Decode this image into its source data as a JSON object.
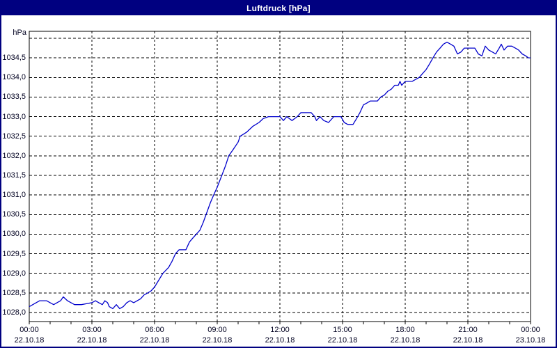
{
  "window": {
    "title": "Luftdruck [hPa]",
    "title_bar_color": "#000080",
    "border_color": "#000080",
    "background_color": "#ffffff",
    "text_color": "#000020"
  },
  "chart_data": {
    "type": "line",
    "title": "Luftdruck [hPa]",
    "ylabel": "hPa",
    "unit_label": "hPa",
    "grid": "dotted black, horizontal every 0.5 hPa, vertical every 3 hours",
    "legend_position": "none",
    "series_color": "#0000cc",
    "frame_color": "#000000",
    "y_axis": {
      "min": 1028.0,
      "max": 1035.0,
      "step": 0.5,
      "tick_labels": [
        "1034,5",
        "1034,0",
        "1033,5",
        "1033,0",
        "1032,5",
        "1032,0",
        "1031,5",
        "1031,0",
        "1030,5",
        "1030,0",
        "1029,5",
        "1029,0",
        "1028,5",
        "1028,0"
      ],
      "top_gridline_unlabeled": 1035.0
    },
    "x_axis": {
      "hours_span": 24,
      "major_tick_hours": 3,
      "minor_tick_hours": 1,
      "ticks": [
        {
          "time": "00:00",
          "date": "22.10.18"
        },
        {
          "time": "03:00",
          "date": "22.10.18"
        },
        {
          "time": "06:00",
          "date": "22.10.18"
        },
        {
          "time": "09:00",
          "date": "22.10.18"
        },
        {
          "time": "12:00",
          "date": "22.10.18"
        },
        {
          "time": "15:00",
          "date": "22.10.18"
        },
        {
          "time": "18:00",
          "date": "22.10.18"
        },
        {
          "time": "21:00",
          "date": "22.10.18"
        },
        {
          "time": "00:00",
          "date": "23.10.18"
        }
      ]
    },
    "series": [
      {
        "name": "Luftdruck",
        "points": [
          [
            0.0,
            1028.15
          ],
          [
            0.17,
            1028.2
          ],
          [
            0.33,
            1028.25
          ],
          [
            0.5,
            1028.3
          ],
          [
            0.83,
            1028.3
          ],
          [
            1.0,
            1028.25
          ],
          [
            1.17,
            1028.2
          ],
          [
            1.33,
            1028.25
          ],
          [
            1.5,
            1028.3
          ],
          [
            1.63,
            1028.4
          ],
          [
            1.83,
            1028.3
          ],
          [
            2.0,
            1028.25
          ],
          [
            2.17,
            1028.2
          ],
          [
            2.5,
            1028.2
          ],
          [
            3.0,
            1028.25
          ],
          [
            3.17,
            1028.3
          ],
          [
            3.33,
            1028.25
          ],
          [
            3.5,
            1028.2
          ],
          [
            3.62,
            1028.3
          ],
          [
            3.75,
            1028.25
          ],
          [
            3.83,
            1028.15
          ],
          [
            4.0,
            1028.1
          ],
          [
            4.17,
            1028.2
          ],
          [
            4.33,
            1028.1
          ],
          [
            4.5,
            1028.15
          ],
          [
            4.67,
            1028.25
          ],
          [
            4.83,
            1028.3
          ],
          [
            5.0,
            1028.25
          ],
          [
            5.17,
            1028.3
          ],
          [
            5.33,
            1028.35
          ],
          [
            5.5,
            1028.45
          ],
          [
            5.67,
            1028.5
          ],
          [
            5.83,
            1028.55
          ],
          [
            6.0,
            1028.65
          ],
          [
            6.17,
            1028.8
          ],
          [
            6.4,
            1029.0
          ],
          [
            6.67,
            1029.15
          ],
          [
            6.83,
            1029.3
          ],
          [
            7.0,
            1029.5
          ],
          [
            7.17,
            1029.6
          ],
          [
            7.5,
            1029.6
          ],
          [
            7.67,
            1029.8
          ],
          [
            7.83,
            1029.9
          ],
          [
            8.0,
            1030.0
          ],
          [
            8.17,
            1030.1
          ],
          [
            8.33,
            1030.3
          ],
          [
            8.5,
            1030.55
          ],
          [
            8.67,
            1030.8
          ],
          [
            8.83,
            1031.0
          ],
          [
            9.0,
            1031.2
          ],
          [
            9.22,
            1031.5
          ],
          [
            9.4,
            1031.75
          ],
          [
            9.55,
            1032.0
          ],
          [
            9.75,
            1032.15
          ],
          [
            10.0,
            1032.35
          ],
          [
            10.1,
            1032.5
          ],
          [
            10.4,
            1032.6
          ],
          [
            10.7,
            1032.75
          ],
          [
            11.0,
            1032.85
          ],
          [
            11.2,
            1032.95
          ],
          [
            11.45,
            1033.0
          ],
          [
            12.0,
            1033.0
          ],
          [
            12.17,
            1032.9
          ],
          [
            12.33,
            1033.0
          ],
          [
            12.58,
            1032.9
          ],
          [
            12.83,
            1033.0
          ],
          [
            13.0,
            1033.1
          ],
          [
            13.5,
            1033.1
          ],
          [
            13.67,
            1033.0
          ],
          [
            13.75,
            1032.9
          ],
          [
            13.92,
            1033.0
          ],
          [
            14.1,
            1032.9
          ],
          [
            14.33,
            1032.85
          ],
          [
            14.58,
            1033.0
          ],
          [
            14.92,
            1033.0
          ],
          [
            15.08,
            1032.85
          ],
          [
            15.25,
            1032.8
          ],
          [
            15.5,
            1032.8
          ],
          [
            15.67,
            1032.95
          ],
          [
            15.83,
            1033.1
          ],
          [
            16.0,
            1033.3
          ],
          [
            16.17,
            1033.35
          ],
          [
            16.33,
            1033.4
          ],
          [
            16.67,
            1033.4
          ],
          [
            16.83,
            1033.5
          ],
          [
            17.0,
            1033.55
          ],
          [
            17.17,
            1033.65
          ],
          [
            17.33,
            1033.7
          ],
          [
            17.5,
            1033.8
          ],
          [
            17.67,
            1033.8
          ],
          [
            17.75,
            1033.9
          ],
          [
            17.83,
            1033.8
          ],
          [
            18.0,
            1033.9
          ],
          [
            18.33,
            1033.9
          ],
          [
            18.5,
            1033.95
          ],
          [
            18.67,
            1034.0
          ],
          [
            18.83,
            1034.1
          ],
          [
            19.0,
            1034.2
          ],
          [
            19.17,
            1034.35
          ],
          [
            19.33,
            1034.5
          ],
          [
            19.5,
            1034.65
          ],
          [
            19.67,
            1034.75
          ],
          [
            19.83,
            1034.85
          ],
          [
            20.0,
            1034.9
          ],
          [
            20.17,
            1034.85
          ],
          [
            20.33,
            1034.8
          ],
          [
            20.5,
            1034.6
          ],
          [
            20.67,
            1034.65
          ],
          [
            20.83,
            1034.75
          ],
          [
            21.17,
            1034.75
          ],
          [
            21.33,
            1034.75
          ],
          [
            21.5,
            1034.6
          ],
          [
            21.67,
            1034.55
          ],
          [
            21.83,
            1034.8
          ],
          [
            22.0,
            1034.7
          ],
          [
            22.17,
            1034.65
          ],
          [
            22.33,
            1034.6
          ],
          [
            22.5,
            1034.75
          ],
          [
            22.6,
            1034.85
          ],
          [
            22.73,
            1034.7
          ],
          [
            22.9,
            1034.8
          ],
          [
            23.1,
            1034.8
          ],
          [
            23.27,
            1034.75
          ],
          [
            23.43,
            1034.7
          ],
          [
            23.6,
            1034.6
          ],
          [
            23.77,
            1034.55
          ],
          [
            23.9,
            1034.5
          ],
          [
            24.0,
            1034.5
          ]
        ]
      }
    ]
  }
}
